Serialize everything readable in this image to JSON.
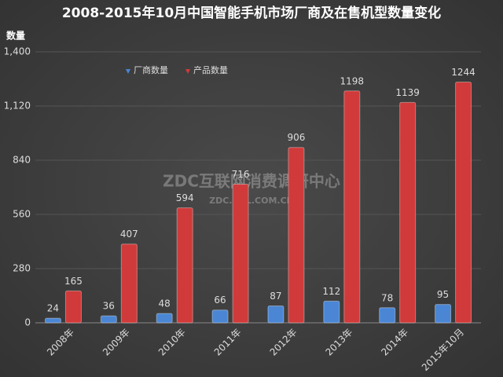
{
  "chart_data": {
    "type": "bar",
    "title": "2008-2015年10月中国智能手机市场厂商及在售机型数量变化",
    "y_label": "数量",
    "watermark": [
      "ZDC互联网消费调研中心",
      "ZDC.ZOL.COM.CN"
    ],
    "categories": [
      "2008年",
      "2009年",
      "2010年",
      "2011年",
      "2012年",
      "2013年",
      "2014年",
      "2015年10月"
    ],
    "series": [
      {
        "name": "厂商数量",
        "color": "#4a86d4",
        "values": [
          24,
          36,
          48,
          66,
          87,
          112,
          78,
          95
        ]
      },
      {
        "name": "产品数量",
        "color": "#d13a3a",
        "values": [
          165,
          407,
          594,
          716,
          906,
          1198,
          1139,
          1244
        ]
      }
    ],
    "ylim": [
      0,
      1400
    ],
    "yticks": [
      0,
      280,
      560,
      840,
      {
        "value": 1120,
        "label": "1,120"
      },
      {
        "value": 1400,
        "label": "1,400"
      }
    ],
    "grid": true,
    "legend": "top"
  }
}
